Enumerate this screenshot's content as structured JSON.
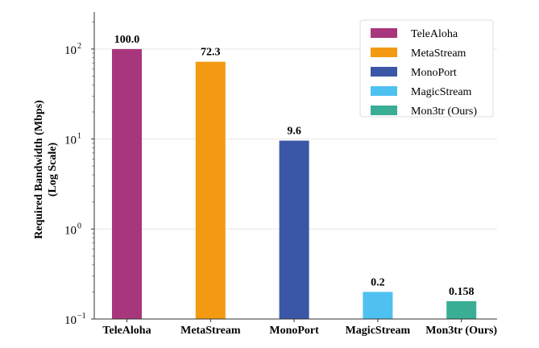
{
  "chart_data": {
    "type": "bar",
    "title": "",
    "xlabel": "",
    "ylabel": "Required Bandwidth (Mbps)\n(Log Scale)",
    "ylabel_lines": [
      "Required Bandwidth (Mbps)",
      "(Log Scale)"
    ],
    "yscale": "log",
    "ylim": [
      0.1,
      250
    ],
    "yticks": [
      {
        "value": 0.1,
        "base": "10",
        "exp": "−1"
      },
      {
        "value": 1,
        "base": "10",
        "exp": "0"
      },
      {
        "value": 10,
        "base": "10",
        "exp": "1"
      },
      {
        "value": 100,
        "base": "10",
        "exp": "2"
      }
    ],
    "grid": true,
    "legend_position": "upper right",
    "categories": [
      "TeleAloha",
      "MetaStream",
      "MonoPort",
      "MagicStream",
      "Mon3tr (Ours)"
    ],
    "values": [
      100.0,
      72.3,
      9.6,
      0.2,
      0.158
    ],
    "value_labels": [
      "100.0",
      "72.3",
      "9.6",
      "0.2",
      "0.158"
    ],
    "colors": [
      "#a8367c",
      "#f39a12",
      "#3b56a6",
      "#4fc1f0",
      "#3aae95"
    ],
    "legend": [
      "TeleAloha",
      "MetaStream",
      "MonoPort",
      "MagicStream",
      "Mon3tr (Ours)"
    ]
  }
}
